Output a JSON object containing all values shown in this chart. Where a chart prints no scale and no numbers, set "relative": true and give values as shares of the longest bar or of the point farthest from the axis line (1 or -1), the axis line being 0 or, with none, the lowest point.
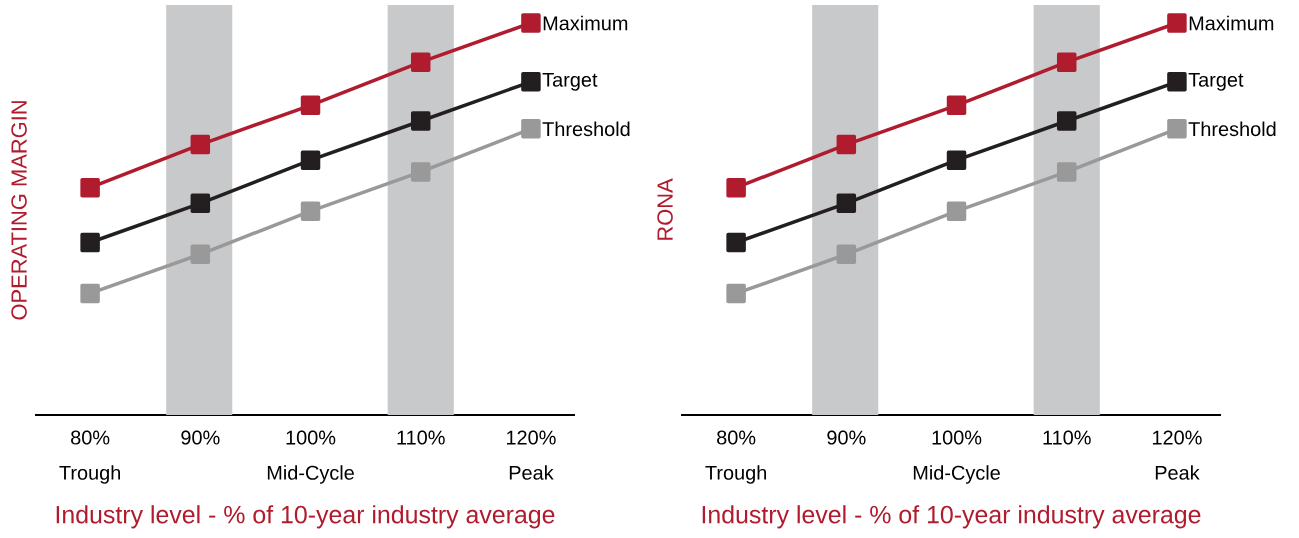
{
  "chart_data": [
    {
      "type": "line",
      "relative": true,
      "ylabel": "OPERATING MARGIN",
      "xlabel": "Industry level - % of 10-year industry average",
      "x": [
        80,
        90,
        100,
        110,
        120
      ],
      "xlim": [
        75,
        124
      ],
      "xticks": [
        {
          "value": 80,
          "label": "80%"
        },
        {
          "value": 90,
          "label": "90%"
        },
        {
          "value": 100,
          "label": "100%"
        },
        {
          "value": 110,
          "label": "110%"
        },
        {
          "value": 120,
          "label": "120%"
        }
      ],
      "bands": [
        {
          "axis": "x",
          "from": 86.9,
          "to": 92.9,
          "color": "#c8c9cb"
        },
        {
          "axis": "x",
          "from": 107.0,
          "to": 113.0,
          "color": "#c8c9cb"
        }
      ],
      "annotations": [
        "Trough",
        "Mid-Cycle",
        "Peak"
      ],
      "marker": "square",
      "line_style": "solid",
      "series": [
        {
          "name": "Maximum",
          "color": "#b01c2e",
          "values": [
            0.58,
            0.69,
            0.79,
            0.9,
            1.0
          ]
        },
        {
          "name": "Target",
          "color": "#231f20",
          "values": [
            0.44,
            0.54,
            0.65,
            0.75,
            0.85
          ]
        },
        {
          "name": "Threshold",
          "color": "#999999",
          "values": [
            0.31,
            0.41,
            0.52,
            0.62,
            0.73
          ]
        }
      ]
    },
    {
      "type": "line",
      "relative": true,
      "ylabel": "RONA",
      "xlabel": "Industry level - % of 10-year industry average",
      "x": [
        80,
        90,
        100,
        110,
        120
      ],
      "xlim": [
        75,
        124
      ],
      "xticks": [
        {
          "value": 80,
          "label": "80%"
        },
        {
          "value": 90,
          "label": "90%"
        },
        {
          "value": 100,
          "label": "100%"
        },
        {
          "value": 110,
          "label": "110%"
        },
        {
          "value": 120,
          "label": "120%"
        }
      ],
      "bands": [
        {
          "axis": "x",
          "from": 86.9,
          "to": 92.9,
          "color": "#c8c9cb"
        },
        {
          "axis": "x",
          "from": 107.0,
          "to": 113.0,
          "color": "#c8c9cb"
        }
      ],
      "annotations": [
        "Trough",
        "Mid-Cycle",
        "Peak"
      ],
      "marker": "square",
      "line_style": "solid",
      "series": [
        {
          "name": "Maximum",
          "color": "#b01c2e",
          "values": [
            0.58,
            0.69,
            0.79,
            0.9,
            1.0
          ]
        },
        {
          "name": "Target",
          "color": "#231f20",
          "values": [
            0.44,
            0.54,
            0.65,
            0.75,
            0.85
          ]
        },
        {
          "name": "Threshold",
          "color": "#999999",
          "values": [
            0.31,
            0.41,
            0.52,
            0.62,
            0.73
          ]
        }
      ]
    }
  ]
}
